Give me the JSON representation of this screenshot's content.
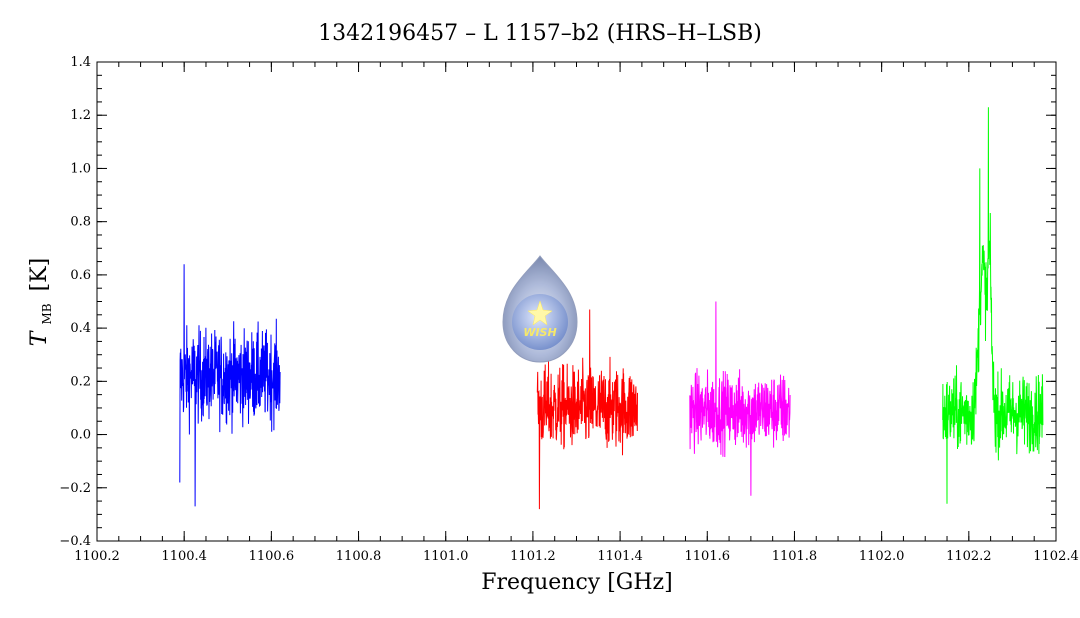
{
  "chart_data": {
    "type": "line",
    "title": "1342196457 – L 1157–b2 (HRS–H–LSB)",
    "xlabel": "Frequency [GHz]",
    "ylabel_main": "T",
    "ylabel_sub": "MB",
    "ylabel_unit": "[K]",
    "xlim": [
      1100.2,
      1102.4
    ],
    "ylim": [
      -0.4,
      1.4
    ],
    "xticks": [
      "1100.2",
      "1100.4",
      "1100.6",
      "1100.8",
      "1101.0",
      "1101.2",
      "1101.4",
      "1101.6",
      "1101.8",
      "1102.0",
      "1102.2",
      "1102.4"
    ],
    "yticks": [
      "−0.4",
      "−0.2",
      "0.0",
      "0.2",
      "0.4",
      "0.6",
      "0.8",
      "1.0",
      "1.2",
      "1.4"
    ],
    "grid": false,
    "logo_text": "WISH",
    "series": [
      {
        "color": "#0000ff",
        "x_range": [
          1100.39,
          1100.62
        ],
        "baseline": 0.22,
        "noise": 0.12,
        "peaks": [
          {
            "x": 1100.4,
            "y": 0.64
          },
          {
            "x": 1100.425,
            "y": -0.27
          },
          {
            "x": 1100.39,
            "y": -0.18
          }
        ]
      },
      {
        "color": "#ff0000",
        "x_range": [
          1101.21,
          1101.44
        ],
        "baseline": 0.1,
        "noise": 0.11,
        "peaks": [
          {
            "x": 1101.215,
            "y": -0.28
          },
          {
            "x": 1101.33,
            "y": 0.47
          }
        ]
      },
      {
        "color": "#ff00ff",
        "x_range": [
          1101.56,
          1101.79
        ],
        "baseline": 0.09,
        "noise": 0.1,
        "peaks": [
          {
            "x": 1101.62,
            "y": 0.5
          },
          {
            "x": 1101.7,
            "y": -0.23
          }
        ]
      },
      {
        "color": "#00ff00",
        "x_range": [
          1102.14,
          1102.37
        ],
        "baseline": 0.08,
        "noise": 0.1,
        "peaks": [
          {
            "x": 1102.225,
            "y": 1.0
          },
          {
            "x": 1102.245,
            "y": 1.23
          },
          {
            "x": 1102.15,
            "y": -0.26
          }
        ]
      }
    ]
  }
}
